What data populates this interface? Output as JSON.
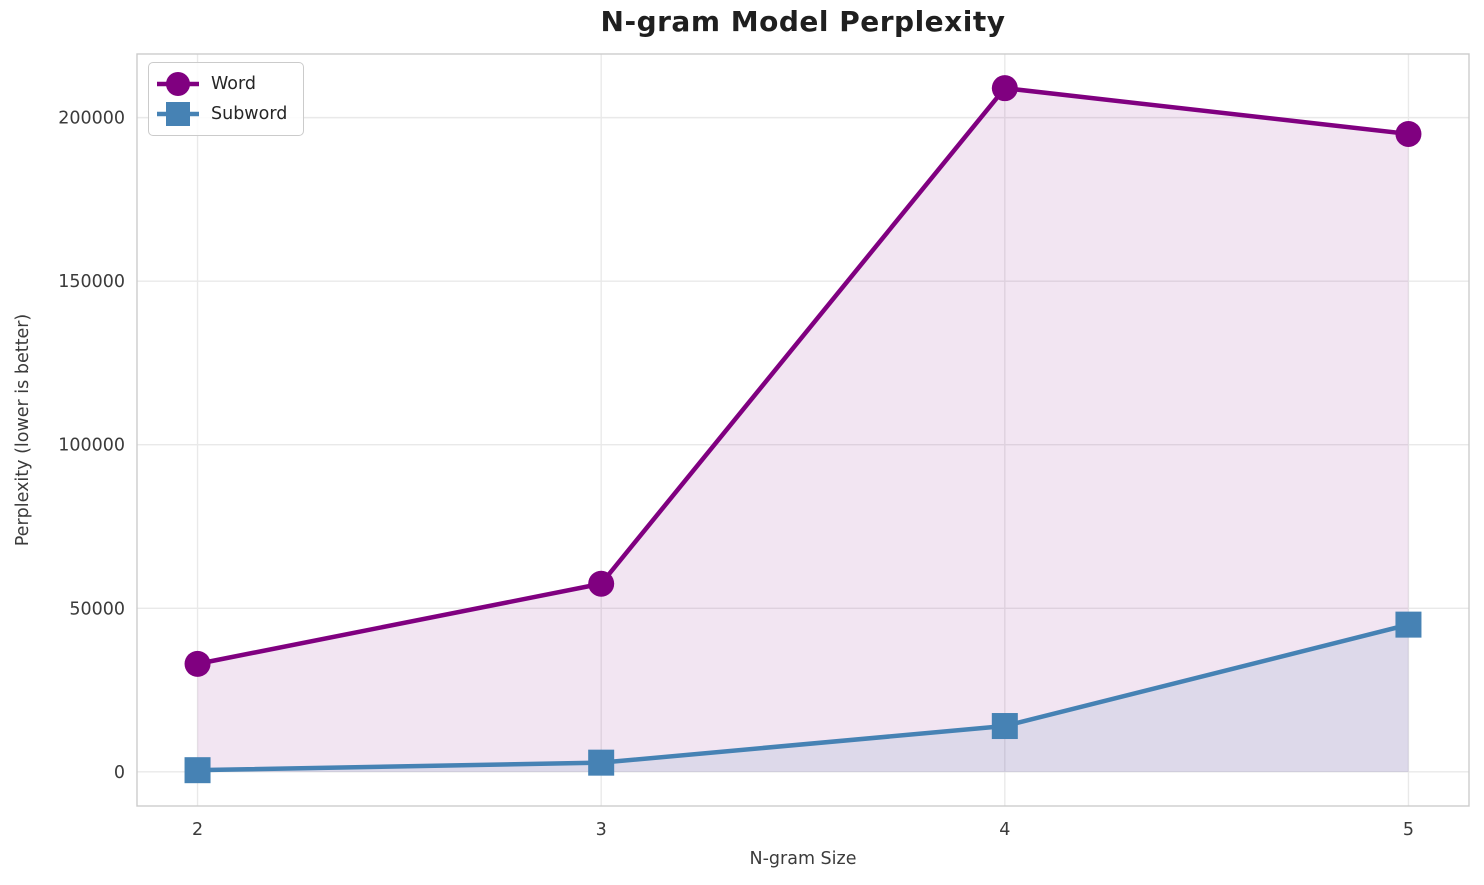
{
  "chart_data": {
    "type": "line",
    "title": "N-gram Model Perplexity",
    "xlabel": "N-gram Size",
    "ylabel": "Perplexity (lower is better)",
    "x": [
      2,
      3,
      4,
      5
    ],
    "xtick_labels": [
      "2",
      "3",
      "4",
      "5"
    ],
    "yticks": [
      0,
      50000,
      100000,
      150000,
      200000
    ],
    "ytick_labels": [
      "0",
      "50000",
      "100000",
      "150000",
      "200000"
    ],
    "xlim": [
      1.85,
      5.15
    ],
    "ylim": [
      -10450,
      219450
    ],
    "grid": true,
    "legend_position": "upper-left",
    "series": [
      {
        "name": "Word",
        "marker": "circle",
        "color": "#800080",
        "fill_opacity": 0.1,
        "values": [
          33000,
          57500,
          209000,
          195000
        ]
      },
      {
        "name": "Subword",
        "marker": "square",
        "color": "#4682b4",
        "fill_opacity": 0.12,
        "values": [
          500,
          2800,
          14000,
          45000
        ]
      }
    ],
    "grid_color": "#e9e9e9",
    "spine_color": "#cccccc",
    "text_color": "#1f1f1f",
    "tick_color": "#3b3b3b",
    "background": "#ffffff"
  }
}
